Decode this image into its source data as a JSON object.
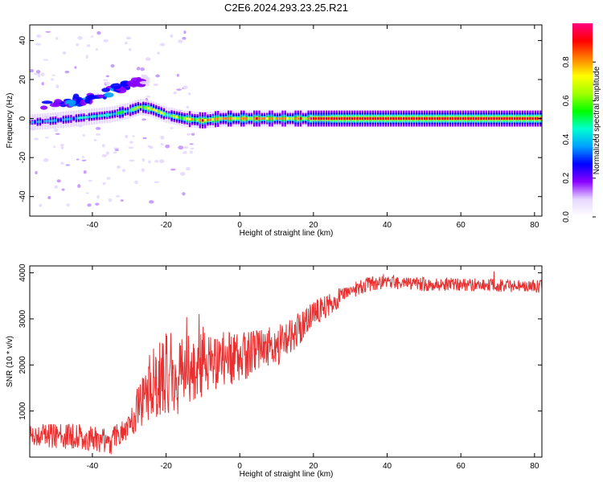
{
  "title": "C2E6.2024.293.23.25.R21",
  "chart_data": [
    {
      "type": "heatmap",
      "xlabel": "Height of straight line (km)",
      "ylabel": "Frequency (Hz)",
      "xlim": [
        -57,
        82
      ],
      "ylim": [
        -50,
        48
      ],
      "x_ticks": [
        "-40",
        "-20",
        "0",
        "20",
        "40",
        "60",
        "80"
      ],
      "y_ticks": [
        "-40",
        "-20",
        "0",
        "20",
        "40"
      ],
      "colorbar": {
        "label": "Normalized spectral amplitude",
        "range": [
          0,
          1
        ],
        "ticks": [
          "0.0",
          "0.2",
          "0.4",
          "0.6",
          "0.8"
        ],
        "colormap": [
          "#ffffff",
          "#e6d8ff",
          "#8a00ff",
          "#0000ff",
          "#00a0ff",
          "#00ffd0",
          "#00ff00",
          "#a0ff00",
          "#ffff00",
          "#ff8000",
          "#ff0000",
          "#ff0080"
        ]
      },
      "ridge": {
        "x": [
          -57,
          -50,
          -45,
          -40,
          -35,
          -30,
          -27,
          -24,
          -20,
          -15,
          -10,
          -5,
          0,
          5,
          10,
          15,
          20,
          30,
          40,
          50,
          60,
          70,
          82
        ],
        "freq": [
          -2,
          -1,
          0,
          1,
          2,
          4,
          6,
          5,
          2,
          0,
          -1,
          0,
          0,
          0,
          0,
          0,
          0,
          0,
          0,
          0,
          0,
          0,
          0
        ],
        "amplitude": [
          0.3,
          0.35,
          0.4,
          0.4,
          0.45,
          0.55,
          0.6,
          0.7,
          0.6,
          0.7,
          0.8,
          0.75,
          0.8,
          0.8,
          0.75,
          0.8,
          0.9,
          0.92,
          0.92,
          0.92,
          0.92,
          0.92,
          0.92
        ]
      },
      "secondary_ridge": {
        "x": [
          -55,
          -50,
          -45,
          -40,
          -35,
          -30,
          -25
        ],
        "freq": [
          6,
          7,
          9,
          11,
          14,
          17,
          20
        ],
        "amplitude": [
          0.25,
          0.25,
          0.3,
          0.3,
          0.3,
          0.25,
          0.15
        ]
      }
    },
    {
      "type": "line",
      "xlabel": "Height of straight line (km)",
      "ylabel": "SNR (10 * v/v)",
      "xlim": [
        -57,
        82
      ],
      "ylim": [
        0,
        4150
      ],
      "x_ticks": [
        "-40",
        "-20",
        "0",
        "20",
        "40",
        "60",
        "80"
      ],
      "y_ticks": [
        "1000",
        "2000",
        "3000",
        "4000"
      ],
      "color": "#e83030",
      "trend": {
        "x": [
          -57,
          -50,
          -45,
          -40,
          -35,
          -32,
          -28,
          -25,
          -20,
          -15,
          -10,
          -5,
          0,
          5,
          10,
          15,
          20,
          25,
          30,
          35,
          40,
          50,
          60,
          70,
          82
        ],
        "y": [
          500,
          450,
          450,
          400,
          350,
          500,
          1000,
          1500,
          1800,
          1900,
          2000,
          2100,
          2150,
          2300,
          2400,
          2700,
          3100,
          3350,
          3600,
          3750,
          3800,
          3750,
          3750,
          3720,
          3700
        ]
      },
      "noise": {
        "x": [
          -57,
          -30,
          -25,
          -20,
          -15,
          -10,
          0,
          10,
          20,
          30,
          40,
          82
        ],
        "amplitude": [
          250,
          300,
          700,
          900,
          850,
          700,
          550,
          450,
          300,
          180,
          150,
          140
        ]
      }
    }
  ]
}
